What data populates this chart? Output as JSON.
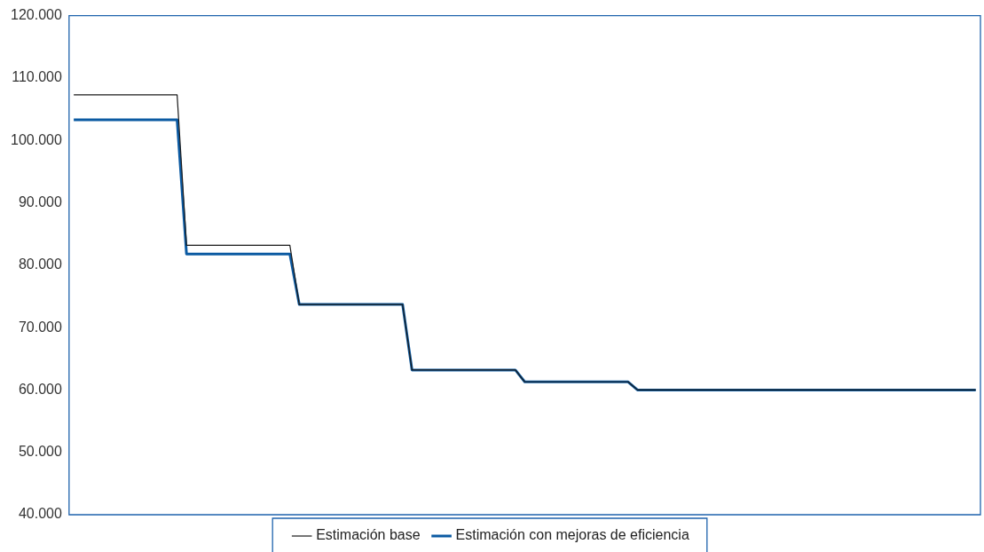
{
  "chart_data": {
    "type": "line",
    "categories": [
      null,
      null,
      null,
      null,
      null,
      null,
      null,
      null,
      null,
      null,
      null,
      null,
      null,
      null,
      null,
      null,
      null,
      null,
      null,
      null,
      null,
      null,
      null,
      null,
      null,
      null,
      null,
      null,
      null,
      null,
      null,
      null,
      null,
      null,
      null,
      null,
      null,
      null,
      null,
      null,
      null,
      null,
      null,
      null,
      null,
      null,
      null,
      null,
      null,
      null,
      null,
      null,
      null,
      null,
      null,
      null,
      null,
      null,
      null,
      null,
      null,
      null,
      null,
      null,
      null,
      null,
      null,
      null,
      null,
      null,
      null,
      null,
      null,
      null,
      null,
      null,
      null,
      null,
      null,
      null,
      null,
      null,
      null,
      null,
      null,
      null,
      null,
      null,
      null,
      null,
      null,
      null,
      null,
      null,
      null,
      null,
      null
    ],
    "series": [
      {
        "name": "Estimación base",
        "color": "#1a1a1a",
        "values": [
          107300,
          107300,
          107300,
          107300,
          107300,
          107300,
          107300,
          107300,
          107300,
          107300,
          107300,
          107300,
          83200,
          83200,
          83200,
          83200,
          83200,
          83200,
          83200,
          83200,
          83200,
          83200,
          83200,
          83200,
          73700,
          73700,
          73700,
          73700,
          73700,
          73700,
          73700,
          73700,
          73700,
          73700,
          73700,
          73700,
          63200,
          63200,
          63200,
          63200,
          63200,
          63200,
          63200,
          63200,
          63200,
          63200,
          63200,
          63200,
          61300,
          61300,
          61300,
          61300,
          61300,
          61300,
          61300,
          61300,
          61300,
          61300,
          61300,
          61300,
          60000,
          60000,
          60000,
          60000,
          60000,
          60000,
          60000,
          60000,
          60000,
          60000,
          60000,
          60000,
          60000,
          60000,
          60000,
          60000,
          60000,
          60000,
          60000,
          60000,
          60000,
          60000,
          60000,
          60000,
          60000,
          60000,
          60000,
          60000,
          60000,
          60000,
          60000,
          60000,
          60000,
          60000,
          60000,
          60000,
          60000
        ]
      },
      {
        "name": "Estimación con mejoras de eficiencia",
        "color": "#0b5aa2",
        "values": [
          103300,
          103300,
          103300,
          103300,
          103300,
          103300,
          103300,
          103300,
          103300,
          103300,
          103300,
          103300,
          81800,
          81800,
          81800,
          81800,
          81800,
          81800,
          81800,
          81800,
          81800,
          81800,
          81800,
          81800,
          73700,
          73700,
          73700,
          73700,
          73700,
          73700,
          73700,
          73700,
          73700,
          73700,
          73700,
          73700,
          63200,
          63200,
          63200,
          63200,
          63200,
          63200,
          63200,
          63200,
          63200,
          63200,
          63200,
          63200,
          61300,
          61300,
          61300,
          61300,
          61300,
          61300,
          61300,
          61300,
          61300,
          61300,
          61300,
          61300,
          60000,
          60000,
          60000,
          60000,
          60000,
          60000,
          60000,
          60000,
          60000,
          60000,
          60000,
          60000,
          60000,
          60000,
          60000,
          60000,
          60000,
          60000,
          60000,
          60000,
          60000,
          60000,
          60000,
          60000,
          60000,
          60000,
          60000,
          60000,
          60000,
          60000,
          60000,
          60000,
          60000,
          60000,
          60000,
          60000,
          60000
        ]
      }
    ],
    "ylim": [
      40000,
      120000
    ],
    "yticks": [
      {
        "value": 40000,
        "label": "40.000"
      },
      {
        "value": 50000,
        "label": "50.000"
      },
      {
        "value": 60000,
        "label": "60.000"
      },
      {
        "value": 70000,
        "label": "70.000"
      },
      {
        "value": 80000,
        "label": "80.000"
      },
      {
        "value": 90000,
        "label": "90.000"
      },
      {
        "value": 100000,
        "label": "100.000"
      },
      {
        "value": 110000,
        "label": "110.000"
      },
      {
        "value": 120000,
        "label": "120.000"
      }
    ],
    "grid": false,
    "legend": "bottom",
    "tick_labels": "y",
    "marker": "none",
    "line_style": "solid"
  }
}
